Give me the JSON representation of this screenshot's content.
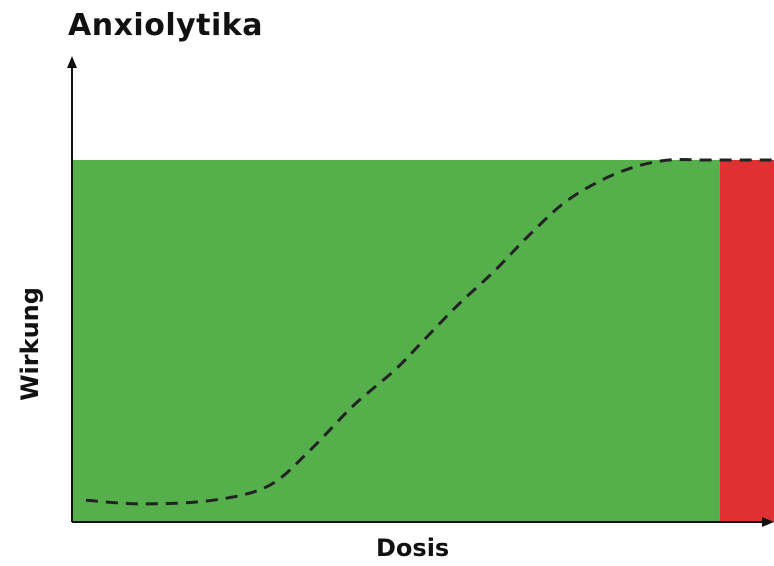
{
  "chart_data": {
    "type": "area",
    "title": "Anxiolytika",
    "xlabel": "Dosis",
    "ylabel": "Wirkung",
    "xlim": [
      0,
      1
    ],
    "ylim": [
      0,
      1
    ],
    "grid": false,
    "legend": "none",
    "regions": [
      {
        "x_start": 0.0,
        "x_end": 0.923,
        "color": "#55b04c"
      },
      {
        "x_start": 0.923,
        "x_end": 1.0,
        "color": "#df3131"
      }
    ],
    "series": [
      {
        "style": "dashed",
        "color": "#222222",
        "x": [
          0.02,
          0.1,
          0.2,
          0.28,
          0.34,
          0.4,
          0.46,
          0.5,
          0.55,
          0.6,
          0.65,
          0.7,
          0.75,
          0.8,
          0.85,
          0.9,
          1.0
        ],
        "y": [
          0.06,
          0.05,
          0.06,
          0.1,
          0.2,
          0.32,
          0.42,
          0.5,
          0.6,
          0.69,
          0.79,
          0.88,
          0.94,
          0.98,
          1.0,
          1.0,
          1.0
        ]
      }
    ]
  }
}
